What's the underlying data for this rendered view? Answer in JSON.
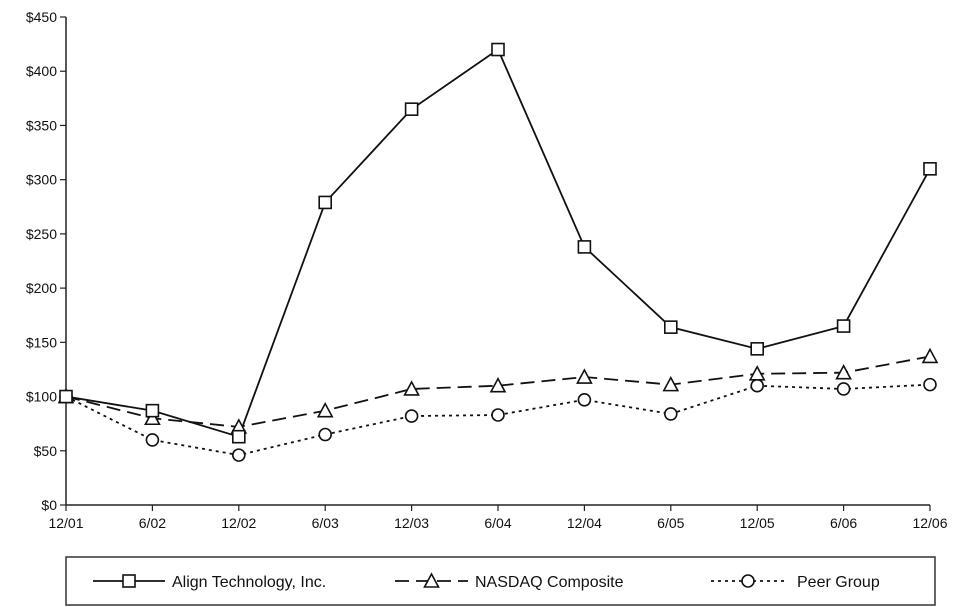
{
  "chart_data": {
    "type": "line",
    "title": "",
    "xlabel": "",
    "ylabel": "",
    "categories": [
      "12/01",
      "6/02",
      "12/02",
      "6/03",
      "12/03",
      "6/04",
      "12/04",
      "6/05",
      "12/05",
      "6/06",
      "12/06"
    ],
    "ylim": [
      0,
      450
    ],
    "yticks": [
      0,
      50,
      100,
      150,
      200,
      250,
      300,
      350,
      400,
      450
    ],
    "ytick_labels": [
      "$0",
      "$50",
      "$100",
      "$150",
      "$200",
      "$250",
      "$300",
      "$350",
      "$400",
      "$450"
    ],
    "grid": false,
    "legend_position": "bottom",
    "series": [
      {
        "name": "Align Technology, Inc.",
        "marker": "square",
        "line_style": "solid",
        "values": [
          100,
          87,
          63,
          279,
          365,
          420,
          238,
          164,
          144,
          165,
          310
        ]
      },
      {
        "name": "NASDAQ Composite",
        "marker": "triangle",
        "line_style": "dashed",
        "values": [
          100,
          80,
          72,
          87,
          107,
          110,
          118,
          111,
          121,
          122,
          137
        ]
      },
      {
        "name": "Peer Group",
        "marker": "circle",
        "line_style": "dotted",
        "values": [
          100,
          60,
          46,
          65,
          82,
          83,
          97,
          84,
          110,
          107,
          111
        ]
      }
    ]
  }
}
